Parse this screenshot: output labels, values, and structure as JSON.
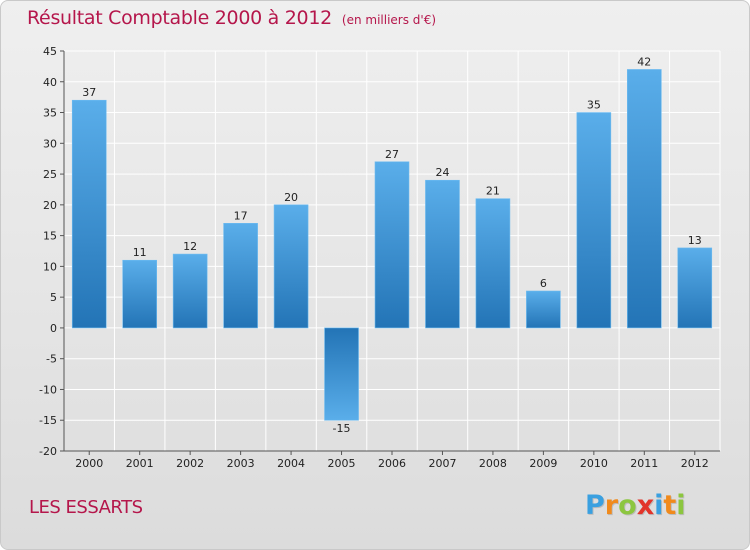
{
  "chart_data": {
    "type": "bar",
    "title": "Résultat Comptable 2000 à 2012",
    "subtitle": "(en milliers d'€)",
    "categories": [
      "2000",
      "2001",
      "2002",
      "2003",
      "2004",
      "2005",
      "2006",
      "2007",
      "2008",
      "2009",
      "2010",
      "2011",
      "2012"
    ],
    "values": [
      37,
      11,
      12,
      17,
      20,
      -15,
      27,
      24,
      21,
      6,
      35,
      42,
      13
    ],
    "data_labels": [
      "37",
      "11",
      "12",
      "17",
      "20",
      "-15",
      "27",
      "24",
      "21",
      "6",
      "35",
      "42",
      "13"
    ],
    "ylim": [
      -20,
      45
    ],
    "yticks": [
      45,
      40,
      35,
      30,
      25,
      20,
      15,
      10,
      5,
      0,
      -5,
      -10,
      -15,
      -20
    ],
    "ytick_labels": [
      "45",
      "40",
      "35",
      "30",
      "25",
      "20",
      "15",
      "10",
      "5",
      "0",
      "-5",
      "-10",
      "-15",
      "-20"
    ],
    "grid": true,
    "xlabel": "",
    "ylabel": ""
  },
  "location": "LES ESSARTS",
  "brand": {
    "letters": [
      "P",
      "r",
      "o",
      "x",
      "i",
      "t",
      "i"
    ],
    "colors": [
      "#3aa0e0",
      "#f08a1c",
      "#8cc63f",
      "#e2342a",
      "#3aa0e0",
      "#f08a1c",
      "#8cc63f"
    ]
  },
  "colors": {
    "title": "#b5164b",
    "bar_light": "#5aaeea",
    "bar_dark": "#2374b6",
    "grid": "#ffffff",
    "axis_text": "#222222"
  }
}
